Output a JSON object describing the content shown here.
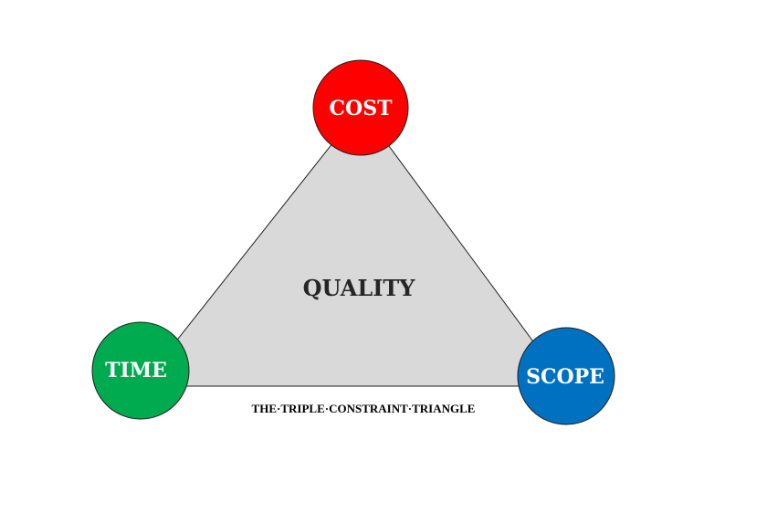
{
  "diagram": {
    "center_label": "QUALITY",
    "caption": "THE·TRIPLE·CONSTRAINT·TRIANGLE",
    "nodes": {
      "cost": {
        "label": "COST",
        "color": "#ff0000"
      },
      "time": {
        "label": "TIME",
        "color": "#00aa4f"
      },
      "scope": {
        "label": "SCOPE",
        "color": "#0070c0"
      }
    },
    "colors": {
      "triangle_fill": "#d9d9d9",
      "outline": "#1f1f1f",
      "node_text": "#ffffff",
      "center_text": "#262626",
      "caption_text": "#000000"
    }
  }
}
